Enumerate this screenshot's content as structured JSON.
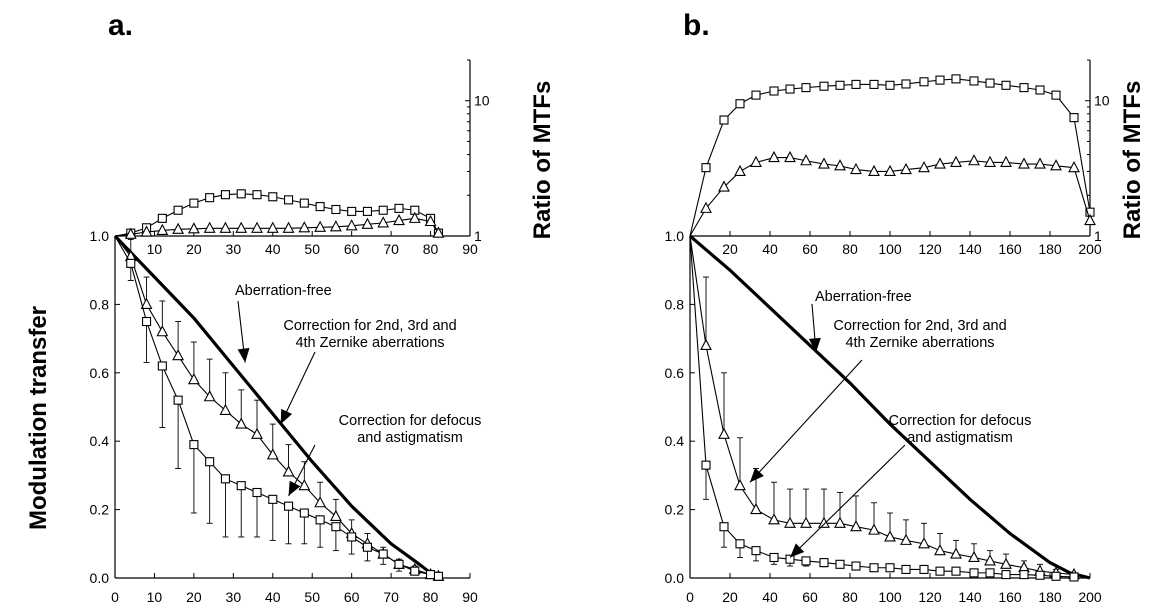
{
  "figure": {
    "shared_ylabel": "Modulation transfer",
    "ratio_label": "Ratio of MTFs"
  },
  "chart_data": [
    {
      "type": "line",
      "panel_label": "a.",
      "xlabel": "",
      "ylabel": "Modulation transfer",
      "xlim": [
        0,
        90
      ],
      "ylim": [
        0,
        1.0
      ],
      "x_ticks": [
        0,
        10,
        20,
        30,
        40,
        50,
        60,
        70,
        80,
        90
      ],
      "y_ticks": [
        "0.0",
        "0.2",
        "0.4",
        "0.6",
        "0.8",
        "1.0"
      ],
      "inset": {
        "ylabel": "Ratio of MTFs",
        "scale": "log",
        "ylim": [
          1,
          20
        ],
        "y_ticks": [
          1,
          10
        ],
        "x_ticks": [
          10,
          20,
          30,
          40,
          50,
          60,
          70,
          80,
          90
        ],
        "series": [
          {
            "marker": "square",
            "x": [
              0,
              4,
              8,
              12,
              16,
              20,
              24,
              28,
              32,
              36,
              40,
              44,
              48,
              52,
              56,
              60,
              64,
              68,
              72,
              76,
              80,
              82
            ],
            "y": [
              1.0,
              1.05,
              1.15,
              1.35,
              1.55,
              1.75,
              1.92,
              2.02,
              2.05,
              2.02,
              1.95,
              1.85,
              1.75,
              1.65,
              1.57,
              1.52,
              1.52,
              1.55,
              1.6,
              1.55,
              1.35,
              1.05
            ]
          },
          {
            "marker": "triangle",
            "x": [
              0,
              4,
              8,
              12,
              16,
              20,
              24,
              28,
              32,
              36,
              40,
              44,
              48,
              52,
              56,
              60,
              64,
              68,
              72,
              76,
              80,
              82
            ],
            "y": [
              1.0,
              1.03,
              1.07,
              1.1,
              1.12,
              1.13,
              1.14,
              1.14,
              1.14,
              1.14,
              1.14,
              1.14,
              1.15,
              1.16,
              1.17,
              1.19,
              1.22,
              1.25,
              1.3,
              1.35,
              1.28,
              1.05
            ]
          }
        ]
      },
      "series": [
        {
          "marker": "none",
          "line": "thick",
          "x": [
            0,
            10,
            20,
            30,
            40,
            50,
            60,
            70,
            76,
            80,
            82
          ],
          "y": [
            1.0,
            0.88,
            0.76,
            0.62,
            0.48,
            0.34,
            0.21,
            0.1,
            0.05,
            0.015,
            0.005
          ]
        },
        {
          "marker": "triangle",
          "x": [
            0,
            4,
            8,
            12,
            16,
            20,
            24,
            28,
            32,
            36,
            40,
            44,
            48,
            52,
            56,
            60,
            64,
            68,
            72,
            76,
            80,
            82
          ],
          "y": [
            1.0,
            0.94,
            0.8,
            0.72,
            0.65,
            0.58,
            0.53,
            0.49,
            0.45,
            0.42,
            0.36,
            0.31,
            0.27,
            0.22,
            0.18,
            0.13,
            0.1,
            0.07,
            0.04,
            0.025,
            0.01,
            0.005
          ],
          "err": [
            0,
            0.05,
            0.08,
            0.09,
            0.1,
            0.11,
            0.11,
            0.11,
            0.1,
            0.1,
            0.09,
            0.08,
            0.07,
            0.06,
            0.05,
            0.04,
            0.03,
            0.02,
            0.015,
            0.01,
            0.005,
            0
          ]
        },
        {
          "marker": "square",
          "x": [
            0,
            4,
            8,
            12,
            16,
            20,
            24,
            28,
            32,
            36,
            40,
            44,
            48,
            52,
            56,
            60,
            64,
            68,
            72,
            76,
            80,
            82
          ],
          "y": [
            1.0,
            0.92,
            0.75,
            0.62,
            0.52,
            0.39,
            0.34,
            0.29,
            0.27,
            0.25,
            0.23,
            0.21,
            0.19,
            0.17,
            0.15,
            0.12,
            0.09,
            0.07,
            0.04,
            0.02,
            0.01,
            0.005
          ],
          "err": [
            0,
            0.05,
            0.12,
            0.18,
            0.2,
            0.2,
            0.18,
            0.17,
            0.15,
            0.13,
            0.12,
            0.11,
            0.09,
            0.08,
            0.07,
            0.05,
            0.04,
            0.03,
            0.02,
            0.01,
            0.005,
            0
          ]
        }
      ],
      "annotations": [
        {
          "lines": [
            "Aberration-free"
          ],
          "target": [
            33,
            0.63
          ]
        },
        {
          "lines": [
            "Correction for 2nd, 3rd and",
            "4th Zernike aberrations"
          ],
          "target": [
            42,
            0.45
          ]
        },
        {
          "lines": [
            "Correction for defocus",
            "and astigmatism"
          ],
          "target": [
            44,
            0.24
          ]
        }
      ]
    },
    {
      "type": "line",
      "panel_label": "b.",
      "xlabel": "",
      "ylabel": "Modulation transfer",
      "xlim": [
        0,
        200
      ],
      "ylim": [
        0,
        1.0
      ],
      "x_ticks": [
        0,
        20,
        40,
        60,
        80,
        100,
        120,
        140,
        160,
        180,
        200
      ],
      "y_ticks": [
        "0.0",
        "0.2",
        "0.4",
        "0.6",
        "0.8",
        "1.0"
      ],
      "inset": {
        "ylabel": "Ratio of MTFs",
        "scale": "log",
        "ylim": [
          1,
          20
        ],
        "y_ticks": [
          1,
          10
        ],
        "x_ticks": [
          20,
          40,
          60,
          80,
          100,
          120,
          140,
          160,
          180,
          200
        ],
        "series": [
          {
            "marker": "square",
            "x": [
              0,
              8,
              17,
              25,
              33,
              42,
              50,
              58,
              67,
              75,
              83,
              92,
              100,
              108,
              117,
              125,
              133,
              142,
              150,
              158,
              167,
              175,
              183,
              192,
              200
            ],
            "y": [
              1.0,
              3.2,
              7.2,
              9.5,
              11.0,
              11.8,
              12.2,
              12.5,
              12.8,
              13.0,
              13.2,
              13.2,
              13.0,
              13.3,
              13.8,
              14.2,
              14.5,
              14.0,
              13.5,
              13.0,
              12.5,
              12.0,
              11.0,
              7.5,
              1.5
            ]
          },
          {
            "marker": "triangle",
            "x": [
              0,
              8,
              17,
              25,
              33,
              42,
              50,
              58,
              67,
              75,
              83,
              92,
              100,
              108,
              117,
              125,
              133,
              142,
              150,
              158,
              167,
              175,
              183,
              192,
              200
            ],
            "y": [
              1.0,
              1.6,
              2.3,
              3.0,
              3.5,
              3.8,
              3.8,
              3.6,
              3.4,
              3.3,
              3.1,
              3.0,
              3.0,
              3.1,
              3.2,
              3.4,
              3.5,
              3.6,
              3.5,
              3.5,
              3.4,
              3.4,
              3.3,
              3.2,
              1.3
            ]
          }
        ]
      },
      "series": [
        {
          "marker": "none",
          "line": "thick",
          "x": [
            0,
            20,
            40,
            60,
            80,
            100,
            120,
            140,
            160,
            180,
            190,
            200
          ],
          "y": [
            1.0,
            0.9,
            0.79,
            0.68,
            0.57,
            0.45,
            0.34,
            0.23,
            0.13,
            0.045,
            0.015,
            0.0
          ]
        },
        {
          "marker": "triangle",
          "x": [
            0,
            8,
            17,
            25,
            33,
            42,
            50,
            58,
            67,
            75,
            83,
            92,
            100,
            108,
            117,
            125,
            133,
            142,
            150,
            158,
            167,
            175,
            183,
            192
          ],
          "y": [
            1.0,
            0.68,
            0.42,
            0.27,
            0.2,
            0.17,
            0.16,
            0.16,
            0.16,
            0.16,
            0.15,
            0.14,
            0.12,
            0.11,
            0.1,
            0.08,
            0.07,
            0.06,
            0.05,
            0.04,
            0.03,
            0.02,
            0.015,
            0.01
          ],
          "err": [
            0,
            0.2,
            0.18,
            0.14,
            0.12,
            0.11,
            0.1,
            0.1,
            0.1,
            0.09,
            0.09,
            0.08,
            0.07,
            0.06,
            0.06,
            0.05,
            0.04,
            0.04,
            0.03,
            0.03,
            0.02,
            0.02,
            0.01,
            0.005
          ]
        },
        {
          "marker": "square",
          "x": [
            0,
            8,
            17,
            25,
            33,
            42,
            50,
            58,
            67,
            75,
            83,
            92,
            100,
            108,
            117,
            125,
            133,
            142,
            150,
            158,
            167,
            175,
            183,
            192
          ],
          "y": [
            1.0,
            0.33,
            0.15,
            0.1,
            0.08,
            0.06,
            0.055,
            0.05,
            0.045,
            0.04,
            0.035,
            0.03,
            0.03,
            0.025,
            0.025,
            0.02,
            0.02,
            0.015,
            0.015,
            0.01,
            0.01,
            0.008,
            0.005,
            0.003
          ],
          "err": [
            0,
            0.1,
            0.06,
            0.04,
            0.03,
            0.02,
            0.02,
            0.015,
            0.012,
            0.01,
            0.01,
            0.008,
            0.008,
            0.006,
            0.006,
            0.005,
            0.005,
            0.004,
            0.004,
            0.003,
            0.003,
            0.002,
            0.002,
            0.001
          ]
        }
      ],
      "annotations": [
        {
          "lines": [
            "Aberration-free"
          ],
          "target": [
            63,
            0.66
          ]
        },
        {
          "lines": [
            "Correction for 2nd, 3rd and",
            "4th Zernike aberrations"
          ],
          "target": [
            30,
            0.28
          ]
        },
        {
          "lines": [
            "Correction for defocus",
            "and astigmatism"
          ],
          "target": [
            50,
            0.06
          ]
        }
      ]
    }
  ]
}
